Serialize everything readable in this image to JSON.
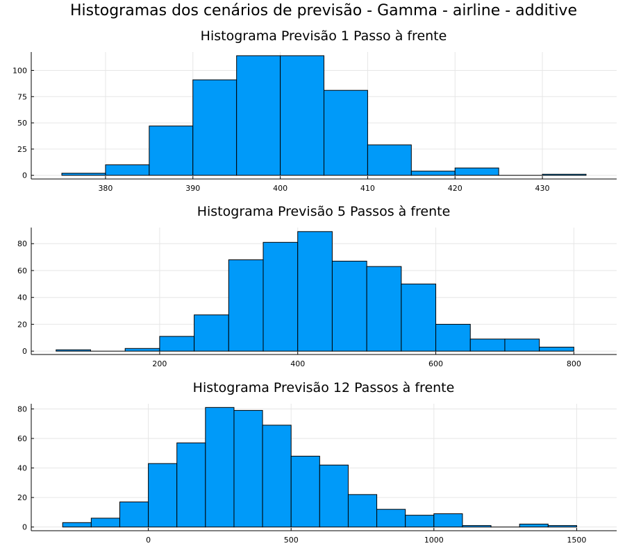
{
  "title": "Histogramas dos cenários de previsão - Gamma - airline - additive",
  "chart_data": [
    {
      "type": "bar",
      "title": "Histograma Previsão 1 Passo à frente",
      "xlabel": "",
      "ylabel": "",
      "bin_width": 5,
      "bin_edges": [
        375,
        380,
        385,
        390,
        395,
        400,
        405,
        410,
        415,
        420,
        425,
        430,
        435
      ],
      "values": [
        2,
        10,
        47,
        91,
        114,
        114,
        81,
        29,
        4,
        7,
        0,
        1
      ],
      "xlim": [
        371.5,
        438.5
      ],
      "ylim": [
        -3.5,
        117.5
      ],
      "xticks": [
        380,
        390,
        400,
        410,
        420,
        430
      ],
      "yticks": [
        0,
        25,
        50,
        75,
        100
      ],
      "grid": true,
      "legend": "none",
      "color": "#009af9"
    },
    {
      "type": "bar",
      "title": "Histograma Previsão 5 Passos à frente",
      "xlabel": "",
      "ylabel": "",
      "bin_width": 50,
      "bin_edges": [
        50,
        100,
        150,
        200,
        250,
        300,
        350,
        400,
        450,
        500,
        550,
        600,
        650,
        700,
        750,
        800
      ],
      "values": [
        1,
        0,
        2,
        11,
        27,
        68,
        81,
        89,
        67,
        63,
        50,
        20,
        9,
        9,
        3
      ],
      "xlim": [
        14,
        862
      ],
      "ylim": [
        -2.5,
        92
      ],
      "xticks": [
        200,
        400,
        600,
        800
      ],
      "yticks": [
        0,
        20,
        40,
        60,
        80
      ],
      "grid": true,
      "legend": "none",
      "color": "#009af9"
    },
    {
      "type": "bar",
      "title": "Histograma Previsão 12 Passos à frente",
      "xlabel": "",
      "ylabel": "",
      "bin_width": 100,
      "bin_edges": [
        -300,
        -200,
        -100,
        0,
        100,
        200,
        300,
        400,
        500,
        600,
        700,
        800,
        900,
        1000,
        1100,
        1200,
        1300,
        1400,
        1500
      ],
      "values": [
        3,
        6,
        17,
        43,
        57,
        81,
        79,
        69,
        48,
        42,
        22,
        12,
        8,
        9,
        1,
        0,
        2,
        1
      ],
      "xlim": [
        -410,
        1640
      ],
      "ylim": [
        -2.5,
        83.5
      ],
      "xticks": [
        0,
        500,
        1000,
        1500
      ],
      "yticks": [
        0,
        20,
        40,
        60,
        80
      ],
      "grid": true,
      "legend": "none",
      "color": "#009af9"
    }
  ]
}
